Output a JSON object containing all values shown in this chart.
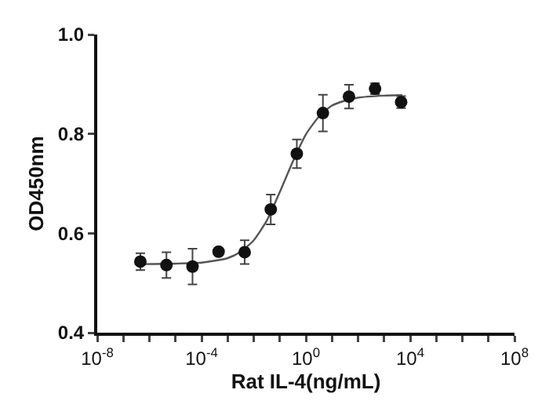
{
  "chart_data": {
    "type": "scatter",
    "xlabel": "Rat IL-4(ng/mL)",
    "ylabel": "OD450nm",
    "log": "x",
    "grid": false,
    "marker": "circle",
    "xlim": [
      1e-08,
      100000000.0
    ],
    "xticks": [
      {
        "value": 1e-08,
        "label": "10$^{-8}$"
      },
      {
        "value": 1e-07,
        "label": null
      },
      {
        "value": 1e-06,
        "label": null
      },
      {
        "value": 1e-05,
        "label": null
      },
      {
        "value": 0.0001,
        "label": "10$^{-4}$"
      },
      {
        "value": 0.001,
        "label": null
      },
      {
        "value": 0.01,
        "label": null
      },
      {
        "value": 0.1,
        "label": null
      },
      {
        "value": 1,
        "label": "10$^{0}$"
      },
      {
        "value": 10,
        "label": null
      },
      {
        "value": 100,
        "label": null
      },
      {
        "value": 1000,
        "label": null
      },
      {
        "value": 10000.0,
        "label": "10$^{4}$"
      },
      {
        "value": 100000.0,
        "label": null
      },
      {
        "value": 1000000.0,
        "label": null
      },
      {
        "value": 10000000.0,
        "label": null
      },
      {
        "value": 100000000.0,
        "label": "10$^{8}$"
      }
    ],
    "ylim": [
      0.4,
      1.0
    ],
    "yticks": [
      0.4,
      0.6,
      0.8,
      {
        "value": 1.0,
        "label": "1.0"
      }
    ],
    "series": [
      {
        "type": "scatter",
        "color": "#111111",
        "x": [
          4.5e-07,
          4.5e-06,
          4.5e-05,
          0.00045,
          0.0045,
          0.045,
          0.45,
          4.5,
          45,
          450,
          4500
        ],
        "values": [
          0.543,
          0.536,
          0.533,
          0.563,
          0.562,
          0.648,
          0.76,
          0.842,
          0.875,
          0.891,
          0.864
        ],
        "errors": [
          0.017,
          0.026,
          0.036,
          null,
          0.024,
          0.03,
          0.029,
          0.037,
          0.024,
          0.011,
          0.012
        ]
      },
      {
        "type": "line",
        "color": "#555555",
        "marker": "none",
        "line_style": "solid",
        "x": [
          4.5e-07,
          1e-05,
          0.0001,
          0.001,
          0.0032,
          0.01,
          0.032,
          0.1,
          0.32,
          1,
          3.2,
          10,
          32,
          100,
          1000,
          5000
        ],
        "values": [
          0.538,
          0.539,
          0.541,
          0.55,
          0.563,
          0.586,
          0.626,
          0.683,
          0.745,
          0.799,
          0.835,
          0.857,
          0.867,
          0.873,
          0.877,
          0.878
        ]
      }
    ]
  }
}
